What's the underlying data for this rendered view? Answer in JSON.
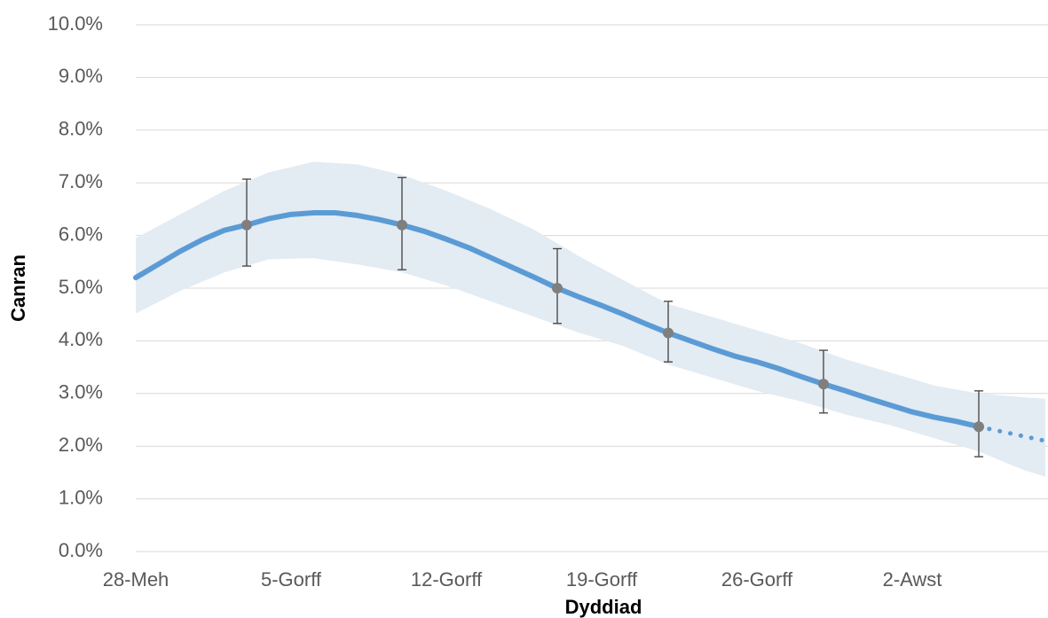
{
  "chart_data": {
    "type": "line",
    "y_label": "Canran",
    "x_label": "Dyddiad",
    "xlim": [
      0,
      41
    ],
    "ylim": [
      0,
      10
    ],
    "xticks": [
      {
        "value": 0,
        "label": "28-Meh"
      },
      {
        "value": 7,
        "label": "5-Gorff"
      },
      {
        "value": 14,
        "label": "12-Gorff"
      },
      {
        "value": 21,
        "label": "19-Gorff"
      },
      {
        "value": 28,
        "label": "26-Gorff"
      },
      {
        "value": 35,
        "label": "2-Awst"
      }
    ],
    "yticks": [
      {
        "value": 0,
        "label": "0.0%"
      },
      {
        "value": 1,
        "label": "1.0%"
      },
      {
        "value": 2,
        "label": "2.0%"
      },
      {
        "value": 3,
        "label": "3.0%"
      },
      {
        "value": 4,
        "label": "4.0%"
      },
      {
        "value": 5,
        "label": "5.0%"
      },
      {
        "value": 6,
        "label": "6.0%"
      },
      {
        "value": 7,
        "label": "7.0%"
      },
      {
        "value": 8,
        "label": "8.0%"
      },
      {
        "value": 9,
        "label": "9.0%"
      },
      {
        "value": 10,
        "label": "10.0%"
      }
    ],
    "grid": true,
    "x": [
      0,
      1,
      2,
      3,
      4,
      5,
      6,
      7,
      8,
      9,
      10,
      11,
      12,
      13,
      14,
      15,
      16,
      17,
      18,
      19,
      20,
      21,
      22,
      23,
      24,
      25,
      26,
      27,
      28,
      29,
      30,
      31,
      32,
      33,
      34,
      35,
      36,
      37,
      38,
      39,
      40,
      41
    ],
    "series": [
      {
        "color": "#5b9bd5",
        "style": "solid",
        "values": [
          5.2,
          5.45,
          5.7,
          5.92,
          6.1,
          6.2,
          6.32,
          6.4,
          6.43,
          6.43,
          6.38,
          6.3,
          6.2,
          6.08,
          5.93,
          5.77,
          5.58,
          5.39,
          5.2,
          5.0,
          4.83,
          4.67,
          4.5,
          4.32,
          4.15,
          4.0,
          3.85,
          3.71,
          3.6,
          3.47,
          3.32,
          3.18,
          3.05,
          2.91,
          2.78,
          2.65,
          2.55,
          2.47,
          2.37,
          null,
          null,
          null
        ]
      },
      {
        "color": "#5b9bd5",
        "style": "dotted",
        "values": [
          null,
          null,
          null,
          null,
          null,
          null,
          null,
          null,
          null,
          null,
          null,
          null,
          null,
          null,
          null,
          null,
          null,
          null,
          null,
          null,
          null,
          null,
          null,
          null,
          null,
          null,
          null,
          null,
          null,
          null,
          null,
          null,
          null,
          null,
          null,
          null,
          null,
          null,
          2.37,
          2.28,
          2.19,
          2.1
        ]
      }
    ],
    "band": {
      "color": "#e3ebf3",
      "x": [
        0,
        2,
        4,
        6,
        8,
        10,
        12,
        14,
        16,
        18,
        20,
        22,
        24,
        26,
        28,
        30,
        32,
        34,
        36,
        38,
        40,
        41
      ],
      "upper": [
        5.95,
        6.4,
        6.85,
        7.2,
        7.4,
        7.35,
        7.15,
        6.85,
        6.5,
        6.1,
        5.6,
        5.15,
        4.7,
        4.45,
        4.2,
        3.95,
        3.65,
        3.4,
        3.15,
        3.0,
        2.93,
        2.9
      ],
      "lower": [
        4.52,
        4.95,
        5.3,
        5.55,
        5.57,
        5.45,
        5.3,
        5.05,
        4.75,
        4.45,
        4.15,
        3.9,
        3.55,
        3.3,
        3.05,
        2.85,
        2.6,
        2.4,
        2.15,
        1.9,
        1.55,
        1.42
      ]
    },
    "points": {
      "color": "#7f7f7f",
      "error_color": "#404040",
      "x": [
        5,
        12,
        19,
        24,
        31,
        38
      ],
      "values": [
        6.2,
        6.2,
        5.0,
        4.15,
        3.18,
        2.37
      ],
      "lower": [
        5.42,
        5.35,
        4.33,
        3.6,
        2.63,
        1.8
      ],
      "upper": [
        7.07,
        7.1,
        5.75,
        4.75,
        3.82,
        3.05
      ]
    }
  }
}
